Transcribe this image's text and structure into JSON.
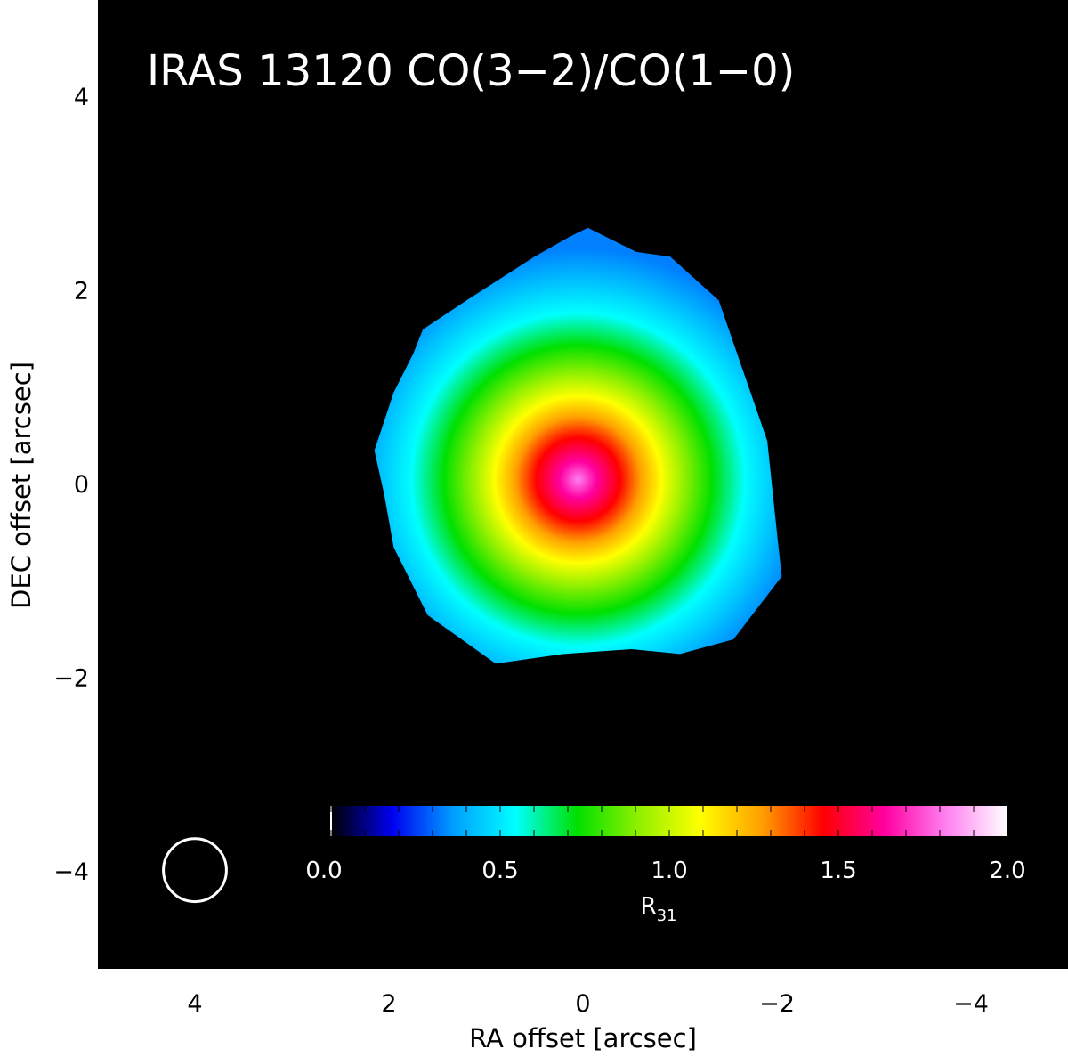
{
  "chart_data": {
    "type": "heatmap",
    "title": "IRAS 13120 CO(3−2)/CO(1−0)",
    "xlabel": "RA offset [arcsec]",
    "ylabel": "DEC offset [arcsec]",
    "xlim": [
      5,
      -5
    ],
    "ylim": [
      -5,
      5
    ],
    "x_ticks": [
      4,
      2,
      0,
      -2,
      -4
    ],
    "x_tick_labels": [
      "4",
      "2",
      "0",
      "−2",
      "−4"
    ],
    "y_ticks": [
      4,
      2,
      0,
      -2,
      -4
    ],
    "y_tick_labels": [
      "4",
      "2",
      "0",
      "−2",
      "−4"
    ],
    "background": "#000000",
    "peak": {
      "ra": 0.05,
      "dec": 0.05,
      "value": 1.8
    },
    "field_boundary": [
      [
        -0.05,
        2.65
      ],
      [
        -0.55,
        2.4
      ],
      [
        -0.9,
        2.35
      ],
      [
        -1.4,
        1.9
      ],
      [
        -1.9,
        0.45
      ],
      [
        -2.0,
        -0.5
      ],
      [
        -2.05,
        -0.95
      ],
      [
        -1.55,
        -1.6
      ],
      [
        -1.0,
        -1.75
      ],
      [
        -0.5,
        -1.7
      ],
      [
        0.2,
        -1.75
      ],
      [
        0.9,
        -1.85
      ],
      [
        1.6,
        -1.35
      ],
      [
        1.95,
        -0.65
      ],
      [
        2.05,
        -0.1
      ],
      [
        2.15,
        0.35
      ],
      [
        1.95,
        0.95
      ],
      [
        1.75,
        1.35
      ],
      [
        1.65,
        1.6
      ],
      [
        1.2,
        1.9
      ],
      [
        0.5,
        2.35
      ],
      [
        0.15,
        2.55
      ]
    ],
    "colorbar": {
      "label": "R",
      "label_subscript": "31",
      "range": [
        0.0,
        2.0
      ],
      "ticks": [
        0.0,
        0.5,
        1.0,
        1.5,
        2.0
      ],
      "tick_labels": [
        "0.0",
        "0.5",
        "1.0",
        "1.5",
        "2.0"
      ],
      "colors": [
        "#000000",
        "#0000f0",
        "#00a0ff",
        "#00ffff",
        "#00e000",
        "#90f000",
        "#ffff00",
        "#ffa000",
        "#ff0000",
        "#ff00a0",
        "#ff80f0",
        "#ffffff"
      ]
    },
    "beam": {
      "ra": 4.0,
      "dec": -4.0,
      "diameter_arcsec": 0.65
    }
  }
}
